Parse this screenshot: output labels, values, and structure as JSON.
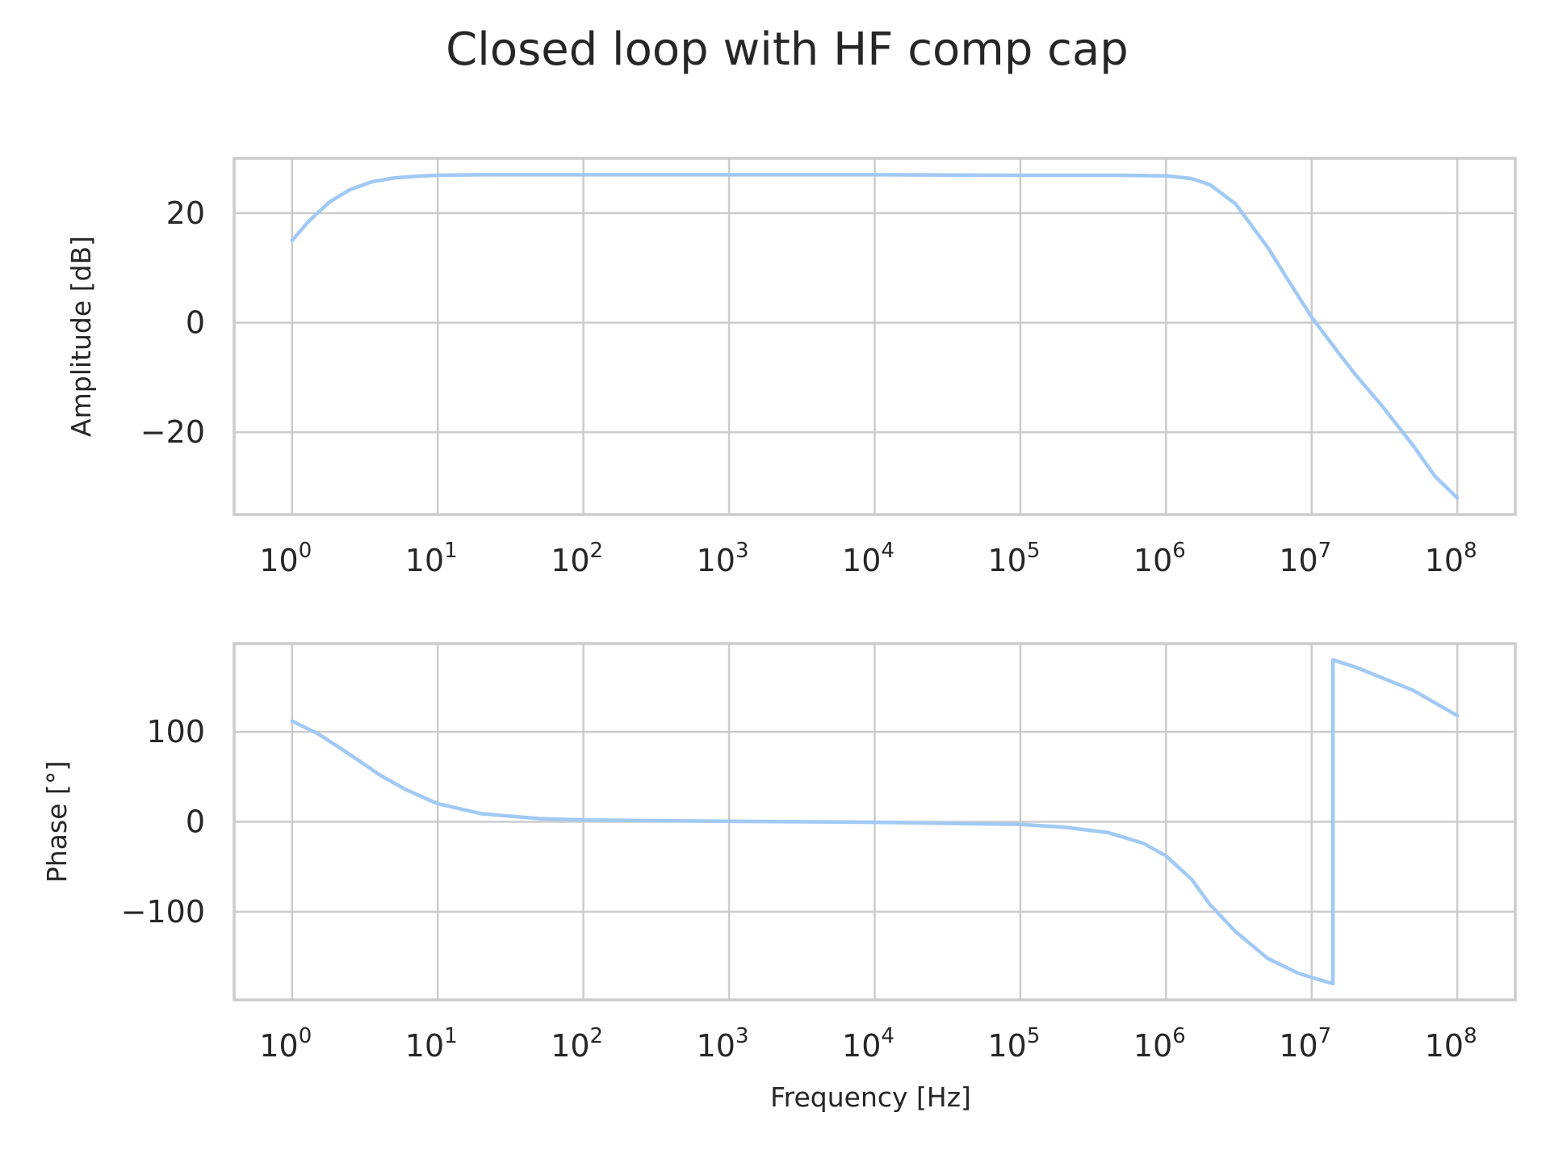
{
  "chart_data": {
    "title": "Closed loop with HF comp cap",
    "colors": {
      "line": "#a1c9f4",
      "grid": "#cccccc",
      "text": "#262626"
    },
    "grid": true,
    "panels": [
      {
        "id": "amplitude",
        "type": "line",
        "xscale": "log",
        "xlim": [
          0.4,
          250000000.0
        ],
        "ylim": [
          -35,
          30
        ],
        "ylabel": "Amplitude [dB]",
        "xlabel": "",
        "xticks": [
          1,
          10,
          100,
          1000,
          10000,
          100000,
          1000000,
          10000000,
          100000000
        ],
        "xtick_labels": [
          {
            "base": "10",
            "exp": "0"
          },
          {
            "base": "10",
            "exp": "1"
          },
          {
            "base": "10",
            "exp": "2"
          },
          {
            "base": "10",
            "exp": "3"
          },
          {
            "base": "10",
            "exp": "4"
          },
          {
            "base": "10",
            "exp": "5"
          },
          {
            "base": "10",
            "exp": "6"
          },
          {
            "base": "10",
            "exp": "7"
          },
          {
            "base": "10",
            "exp": "8"
          }
        ],
        "yticks": [
          20,
          0,
          -20
        ],
        "ytick_labels": [
          "20",
          "0",
          "−20"
        ],
        "series": [
          {
            "x": [
              1,
              1.3,
              1.8,
              2.5,
              3.5,
              5,
              7,
              10,
              20,
              50,
              100,
              1000,
              10000,
              100000,
              500000,
              1000000,
              1500000,
              2000000,
              3000000,
              5000000,
              7000000,
              10000000,
              15000000,
              20000000,
              30000000,
              50000000,
              70000000,
              100000000
            ],
            "y": [
              15,
              18.5,
              22,
              24.3,
              25.7,
              26.4,
              26.7,
              26.9,
              27.0,
              27.0,
              27.0,
              27.0,
              27.0,
              26.9,
              26.9,
              26.8,
              26.3,
              25.2,
              21.7,
              13.7,
              7.5,
              1.0,
              -5.2,
              -9.5,
              -15.0,
              -22.5,
              -28.0,
              -32.0
            ]
          }
        ]
      },
      {
        "id": "phase",
        "type": "line",
        "xscale": "log",
        "xlim": [
          0.4,
          250000000.0
        ],
        "ylim": [
          -198,
          198
        ],
        "ylabel": "Phase [°]",
        "xlabel": "Frequency [Hz]",
        "xticks": [
          1,
          10,
          100,
          1000,
          10000,
          100000,
          1000000,
          10000000,
          100000000
        ],
        "xtick_labels": [
          {
            "base": "10",
            "exp": "0"
          },
          {
            "base": "10",
            "exp": "1"
          },
          {
            "base": "10",
            "exp": "2"
          },
          {
            "base": "10",
            "exp": "3"
          },
          {
            "base": "10",
            "exp": "4"
          },
          {
            "base": "10",
            "exp": "5"
          },
          {
            "base": "10",
            "exp": "6"
          },
          {
            "base": "10",
            "exp": "7"
          },
          {
            "base": "10",
            "exp": "8"
          }
        ],
        "yticks": [
          100,
          0,
          -100
        ],
        "ytick_labels": [
          "100",
          "0",
          "−100"
        ],
        "series": [
          {
            "x": [
              1,
              1.5,
              2,
              3,
              4,
              6,
              8,
              10,
              20,
              50,
              100,
              1000,
              10000,
              100000,
              200000,
              400000,
              700000,
              1000000,
              1500000,
              2000000,
              3000000,
              5000000,
              8000000,
              10000000,
              14000000,
              14000000,
              20000000,
              50000000,
              100000000
            ],
            "y": [
              112,
              98,
              85,
              66,
              52,
              36,
              27,
              20,
              9,
              3.5,
              2,
              0.5,
              -0.5,
              -3,
              -6,
              -12,
              -24,
              -38,
              -64,
              -92,
              -122,
              -152,
              -168,
              -173,
              -180,
              180,
              172,
              146,
              118
            ]
          }
        ]
      }
    ]
  }
}
